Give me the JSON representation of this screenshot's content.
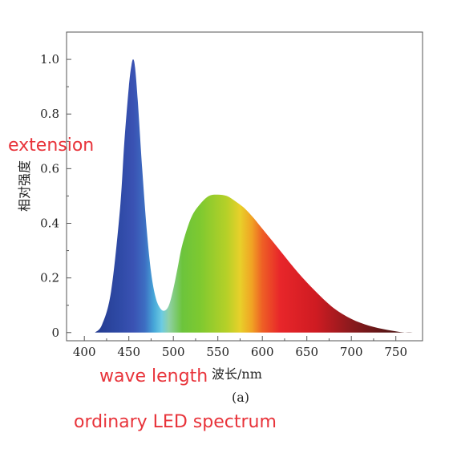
{
  "annotations": {
    "extension": "extension",
    "wave_length": "wave length",
    "caption": "ordinary LED spectrum"
  },
  "chart_data": {
    "type": "area",
    "title": "",
    "xlabel": "波长/nm",
    "ylabel": "相对强度",
    "panel_label": "(a)",
    "xlim": [
      380,
      780
    ],
    "ylim": [
      -0.03,
      1.1
    ],
    "x_ticks": [
      400,
      450,
      500,
      550,
      600,
      650,
      700,
      750
    ],
    "y_ticks": [
      0,
      0.2,
      0.4,
      0.6,
      0.8,
      1.0
    ],
    "y_tick_labels": [
      "0",
      "0.2",
      "0.4",
      "0.6",
      "0.8",
      "1.0"
    ],
    "grid": false,
    "fill": "spectral color gradient",
    "series": [
      {
        "x": [
          412,
          420,
          430,
          440,
          445,
          450,
          453,
          455,
          457,
          460,
          465,
          470,
          475,
          480,
          485,
          490,
          495,
          500,
          505,
          510,
          520,
          530,
          540,
          550,
          560,
          570,
          580,
          590,
          600,
          620,
          640,
          660,
          680,
          700,
          720,
          740,
          760,
          770
        ],
        "y": [
          0.0,
          0.03,
          0.15,
          0.45,
          0.7,
          0.9,
          0.98,
          1.0,
          0.97,
          0.85,
          0.6,
          0.38,
          0.22,
          0.13,
          0.09,
          0.08,
          0.1,
          0.16,
          0.24,
          0.32,
          0.42,
          0.47,
          0.5,
          0.505,
          0.5,
          0.48,
          0.455,
          0.42,
          0.38,
          0.3,
          0.22,
          0.15,
          0.09,
          0.05,
          0.025,
          0.01,
          0.0,
          0.0
        ]
      }
    ]
  }
}
